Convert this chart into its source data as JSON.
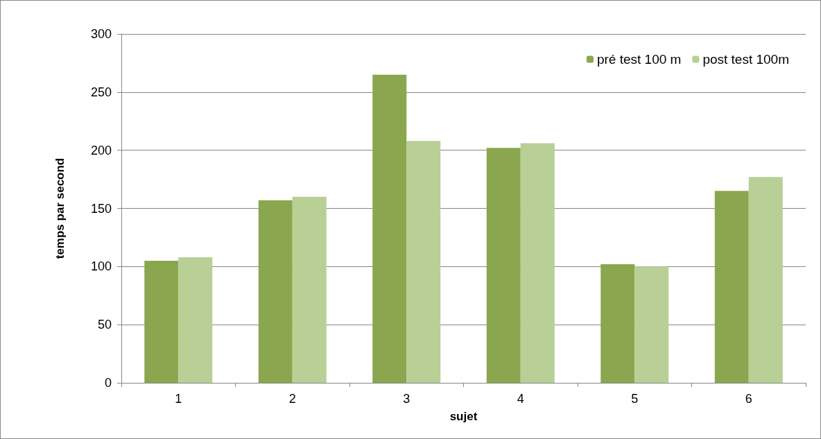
{
  "chart_data": {
    "type": "bar",
    "xlabel": "sujet",
    "ylabel": "temps par second",
    "categories": [
      "1",
      "2",
      "3",
      "4",
      "5",
      "6"
    ],
    "series": [
      {
        "name": "pré test 100 m",
        "color": "#8aa64f",
        "values": [
          105,
          157,
          265,
          202,
          102,
          165
        ]
      },
      {
        "name": "post test 100m",
        "color": "#b8cf95",
        "values": [
          108,
          160,
          208,
          206,
          100,
          177
        ]
      }
    ],
    "ylim": [
      0,
      300
    ],
    "yticks": [
      0,
      50,
      100,
      150,
      200,
      250,
      300
    ],
    "grid": "y",
    "legend": "top right"
  }
}
